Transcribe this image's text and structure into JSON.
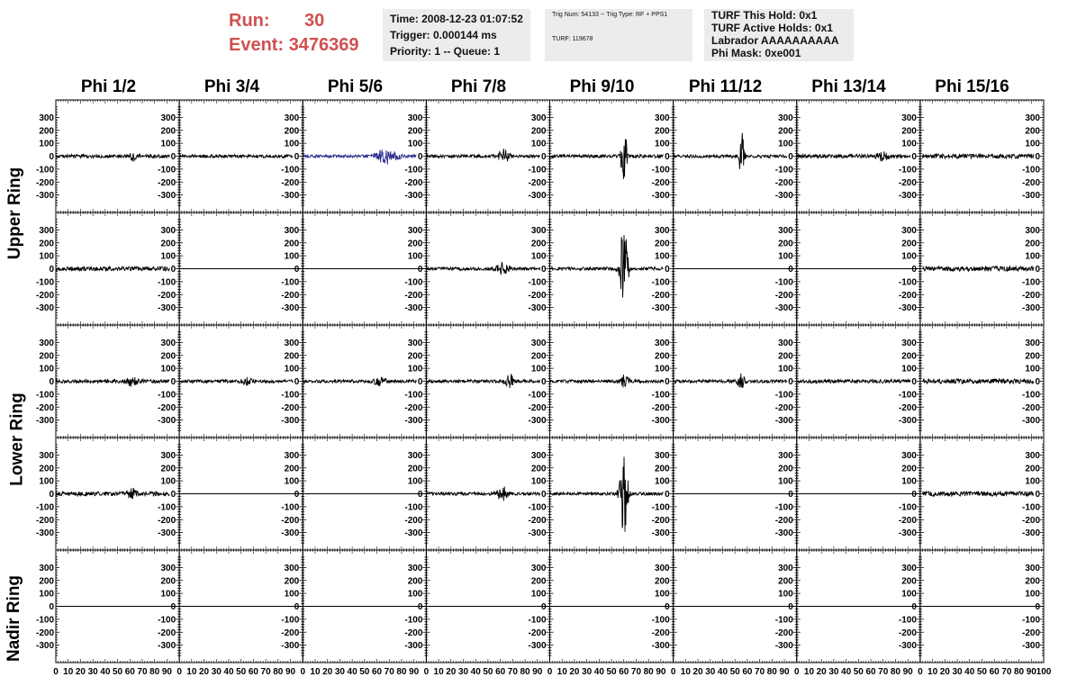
{
  "run": {
    "label": "Run:",
    "value": "30"
  },
  "event": {
    "label": "Event:",
    "value": "3476369"
  },
  "time_box": {
    "time": "Time: 2008-12-23 01:07:52",
    "trigger": "Trigger: 0.000144 ms",
    "priority": "Priority: 1 -- Queue: 1"
  },
  "trig_box": {
    "trig_line": "Trig Num: 54133 -- Trig Type: RF + PPS1",
    "turf_line": "TURF: 119678"
  },
  "turf_box": {
    "this_hold": "TURF This Hold: 0x1",
    "active_holds": "TURF Active Holds: 0x1",
    "labrador": "Labrador AAAAAAAAAA",
    "phi_mask": "Phi Mask: 0xe001"
  },
  "phi_labels": [
    "Phi 1/2",
    "Phi 3/4",
    "Phi 5/6",
    "Phi 7/8",
    "Phi 9/10",
    "Phi 11/12",
    "Phi 13/14",
    "Phi 15/16"
  ],
  "ring_labels": {
    "upper": "Upper Ring",
    "lower": "Lower Ring",
    "nadir": "Nadir Ring"
  },
  "colors": {
    "trace": "#000000",
    "highlight_trace": "#2b2b8c",
    "run_text": "#d05050",
    "box_bg": "#ececec"
  },
  "chart_data": {
    "type": "line",
    "description_rows": [
      "upper-1",
      "upper-2",
      "lower-1",
      "lower-2",
      "nadir"
    ],
    "columns": [
      "Phi 1/2",
      "Phi 3/4",
      "Phi 5/6",
      "Phi 7/8",
      "Phi 9/10",
      "Phi 11/12",
      "Phi 13/14",
      "Phi 15/16"
    ],
    "xlim": [
      0,
      100
    ],
    "ylim": [
      -400,
      400
    ],
    "x_tick_labels": [
      "0",
      "10",
      "20",
      "30",
      "40",
      "50",
      "60",
      "70",
      "80",
      "90",
      "100"
    ],
    "y_tick_labels": [
      "-300",
      "-200",
      "-100",
      "0",
      "100",
      "200",
      "300"
    ],
    "waveforms": [
      [
        {
          "amp": 14,
          "burst": {
            "center": 63,
            "width": 3,
            "amp": 30
          }
        },
        {
          "amp": 12
        },
        {
          "amp": 12,
          "burst": {
            "center": 68,
            "width": 8,
            "amp": 55
          },
          "highlight": true
        },
        {
          "amp": 12,
          "burst": {
            "center": 63,
            "width": 4,
            "amp": 55
          }
        },
        {
          "amp": 12,
          "burst": {
            "center": 60,
            "width": 2,
            "amp": 320
          }
        },
        {
          "amp": 12,
          "burst": {
            "center": 55,
            "width": 2,
            "amp": 290
          }
        },
        {
          "amp": 14,
          "burst": {
            "center": 70,
            "width": 4,
            "amp": 40
          }
        },
        {
          "amp": 18,
          "start": 2,
          "end": 92
        }
      ],
      [
        {
          "amp": 16
        },
        {
          "flat": true
        },
        {
          "flat": true
        },
        {
          "amp": 12,
          "burst": {
            "center": 62,
            "width": 5,
            "amp": 45
          }
        },
        {
          "amp": 12,
          "burst": {
            "center": 60,
            "width": 3,
            "amp": 360
          }
        },
        {
          "flat": true
        },
        {
          "flat": true
        },
        {
          "amp": 18,
          "start": 2,
          "end": 92
        }
      ],
      [
        {
          "amp": 14,
          "burst": {
            "center": 62,
            "width": 4,
            "amp": 35
          }
        },
        {
          "amp": 12,
          "burst": {
            "center": 55,
            "width": 4,
            "amp": 25
          }
        },
        {
          "amp": 12,
          "burst": {
            "center": 62,
            "width": 5,
            "amp": 30
          }
        },
        {
          "amp": 12,
          "burst": {
            "center": 68,
            "width": 4,
            "amp": 45
          }
        },
        {
          "amp": 12,
          "burst": {
            "center": 60,
            "width": 4,
            "amp": 40
          }
        },
        {
          "amp": 12,
          "burst": {
            "center": 55,
            "width": 3,
            "amp": 55
          }
        },
        {
          "amp": 14
        },
        {
          "amp": 18,
          "start": 2,
          "end": 92
        }
      ],
      [
        {
          "amp": 16,
          "burst": {
            "center": 62,
            "width": 4,
            "amp": 30
          }
        },
        {
          "flat": true
        },
        {
          "flat": true
        },
        {
          "amp": 12,
          "burst": {
            "center": 62,
            "width": 4,
            "amp": 50
          }
        },
        {
          "amp": 12,
          "burst": {
            "center": 60,
            "width": 3,
            "amp": 320
          }
        },
        {
          "flat": true
        },
        {
          "flat": true
        },
        {
          "amp": 18,
          "start": 2,
          "end": 92
        }
      ],
      [
        {
          "flat": true
        },
        {
          "flat": true
        },
        {
          "flat": true
        },
        {
          "flat": true
        },
        {
          "flat": true
        },
        {
          "flat": true
        },
        {
          "flat": true
        },
        {
          "flat": true
        }
      ]
    ]
  }
}
